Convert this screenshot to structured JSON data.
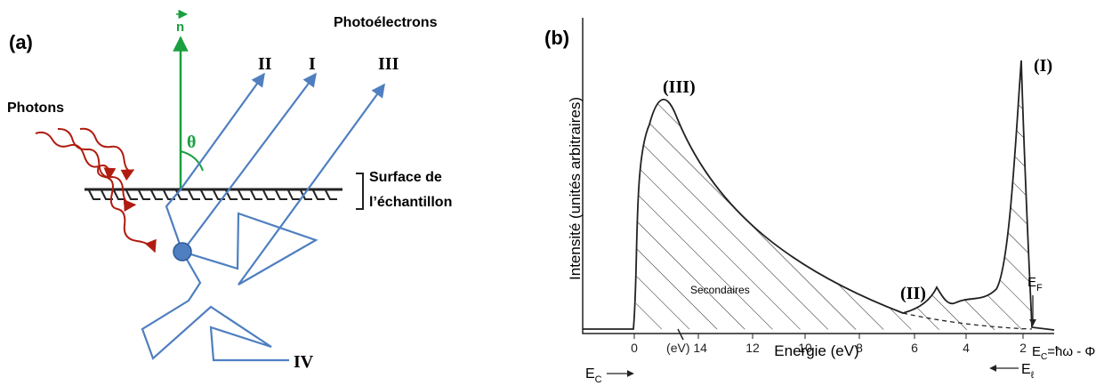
{
  "panel_a": {
    "label": "(a)",
    "photons": "Photons",
    "photoelectrons": "Photoélectrons",
    "normal": "n",
    "angle": "θ",
    "surface": [
      "Surface de",
      "l’échantillon"
    ],
    "rays": [
      "II",
      "I",
      "III",
      "IV"
    ]
  },
  "panel_b": {
    "label": "(b)",
    "y_axis": "Intensité (unités arbitraires)",
    "x_axis": "Energie (eV)",
    "ticks": [
      "0",
      "(eV) 14",
      "12",
      "10",
      "8",
      "6",
      "4",
      "2"
    ],
    "peaks": [
      "(III)",
      "(II)",
      "(I)"
    ],
    "secondary": "Secondaires",
    "ec": {
      "main": "E",
      "sub": "C"
    },
    "el": {
      "main": "E",
      "sub": "ℓ"
    },
    "ef": {
      "main": "E",
      "sub": "F"
    },
    "formula": {
      "main": "E",
      "sub": "C",
      "rest": "=ħω - Φ"
    }
  }
}
